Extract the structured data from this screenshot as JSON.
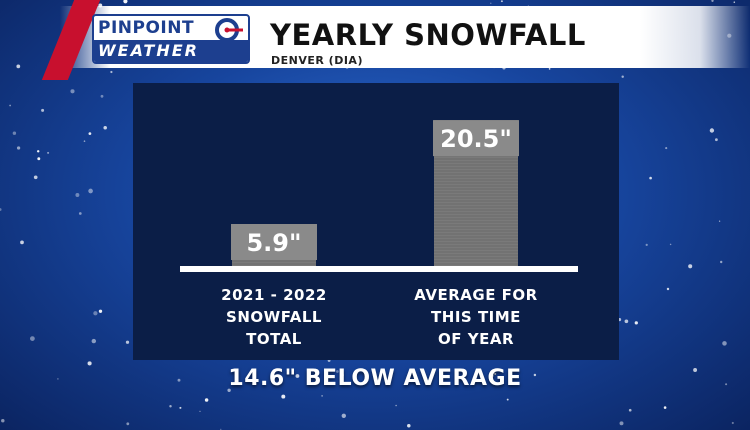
{
  "logo": {
    "line1": "PINPOINT",
    "line2": "WEATHER"
  },
  "header": {
    "title": "YEARLY SNOWFALL",
    "subtitle": "DENVER (DIA)"
  },
  "footer": {
    "text": "14.6\" BELOW AVERAGE"
  },
  "colors": {
    "panel": "#0b1e47",
    "bar": "#7a7a7a",
    "bar_label_bg": "#8a8a8a",
    "baseline": "#ffffff",
    "accent_red": "#c8102e",
    "logo_blue": "#1d3f8f"
  },
  "chart_data": {
    "type": "bar",
    "categories": [
      "2021 - 2022\nSNOWFALL\nTOTAL",
      "AVERAGE FOR\nTHIS TIME\nOF YEAR"
    ],
    "values": [
      5.9,
      20.5
    ],
    "value_labels": [
      "5.9\"",
      "20.5\""
    ],
    "unit": "inches",
    "ylim": [
      0,
      21.5
    ],
    "grid": false,
    "legend": "none"
  }
}
